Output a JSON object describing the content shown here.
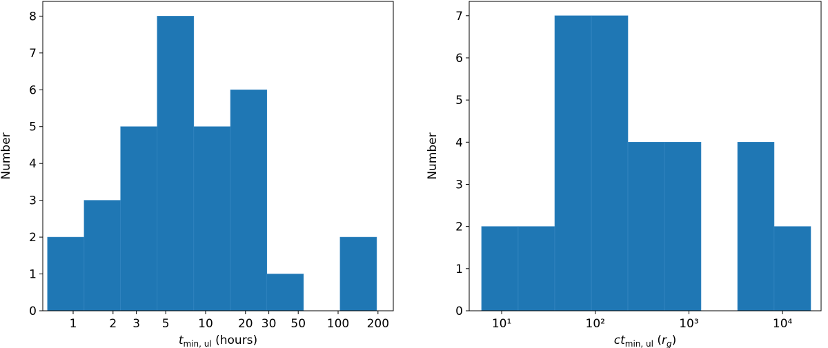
{
  "chart_data": [
    {
      "type": "histogram",
      "color": "#1f77b4",
      "xscale": "log",
      "bins": [
        0.64,
        1.21,
        2.28,
        4.31,
        8.14,
        15.4,
        29.0,
        54.8,
        103.5,
        195.5
      ],
      "values": [
        2,
        3,
        5,
        8,
        5,
        6,
        1,
        0,
        2
      ],
      "xlim": [
        0.59,
        261
      ],
      "ylim": [
        0,
        8.4
      ],
      "xticks": [
        1,
        2,
        3,
        5,
        10,
        20,
        30,
        50,
        100,
        200
      ],
      "yticks": [
        0,
        1,
        2,
        3,
        4,
        5,
        6,
        7,
        8
      ],
      "xlabel": [
        {
          "text": "t",
          "style": "italic"
        },
        {
          "text": "min, ul",
          "style": "sub"
        },
        {
          "text": " (hours)"
        }
      ],
      "ylabel": "Number"
    },
    {
      "type": "histogram",
      "color": "#1f77b4",
      "xscale": "log",
      "bins": [
        6.1,
        15.0,
        36.9,
        90.8,
        223,
        548,
        1346,
        3311,
        8128,
        20000
      ],
      "values": [
        2,
        2,
        7,
        7,
        4,
        4,
        0,
        4,
        2
      ],
      "xlim": [
        4.5,
        25800
      ],
      "ylim": [
        0,
        7.34
      ],
      "xticks": [
        {
          "value": 10,
          "label": "10¹"
        },
        {
          "value": 100,
          "label": "10²"
        },
        {
          "value": 1000,
          "label": "10³"
        },
        {
          "value": 10000,
          "label": "10⁴"
        }
      ],
      "yticks": [
        0,
        1,
        2,
        3,
        4,
        5,
        6,
        7
      ],
      "xlabel": [
        {
          "text": "ct",
          "style": "italic"
        },
        {
          "text": "min, ul",
          "style": "sub"
        },
        {
          "text": " ("
        },
        {
          "text": "r",
          "style": "italic"
        },
        {
          "text": "g",
          "style": "sub-italic"
        },
        {
          "text": ")"
        }
      ],
      "ylabel": "Number"
    }
  ]
}
